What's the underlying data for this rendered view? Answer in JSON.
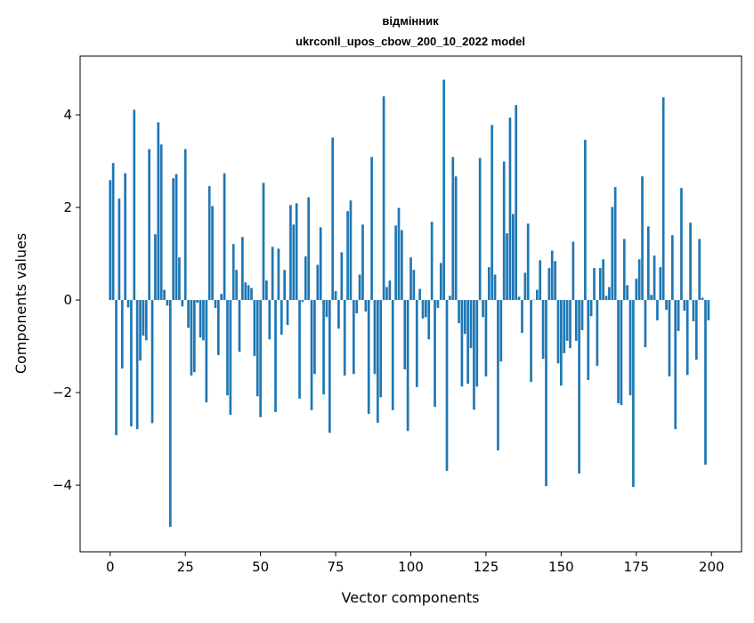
{
  "chart_data": {
    "type": "bar",
    "title_line1": "відмінник",
    "title_line2": "ukrconll_upos_cbow_200_10_2022 model",
    "xlabel": "Vector components",
    "ylabel": "Components values",
    "xlim": [
      -10,
      210
    ],
    "ylim": [
      -5.44,
      5.27
    ],
    "xticks": [
      0,
      25,
      50,
      75,
      100,
      125,
      150,
      175,
      200
    ],
    "xtick_labels": [
      "0",
      "25",
      "50",
      "75",
      "100",
      "125",
      "150",
      "175",
      "200"
    ],
    "yticks": [
      -4,
      -2,
      0,
      2,
      4
    ],
    "ytick_labels": [
      "−4",
      "−2",
      "0",
      "2",
      "4"
    ],
    "grid": false,
    "bar_color": "#1f77b4",
    "values": [
      2.59,
      2.96,
      -2.92,
      2.19,
      -1.48,
      2.74,
      -0.16,
      -2.73,
      4.11,
      -2.79,
      -1.31,
      -0.77,
      -0.87,
      3.26,
      -2.66,
      1.42,
      3.84,
      3.36,
      0.22,
      -0.12,
      -4.9,
      2.63,
      2.72,
      0.92,
      -0.14,
      3.26,
      -0.6,
      -1.63,
      -1.56,
      -0.06,
      -0.81,
      -0.87,
      -2.21,
      2.46,
      2.03,
      -0.17,
      -1.19,
      0.13,
      2.74,
      -2.06,
      -2.48,
      1.21,
      0.65,
      -1.12,
      1.36,
      0.38,
      0.32,
      0.26,
      -1.21,
      -2.08,
      -2.53,
      2.53,
      0.42,
      -0.85,
      1.15,
      -2.42,
      1.11,
      -0.75,
      0.65,
      -0.54,
      2.05,
      1.63,
      2.09,
      -2.13,
      -0.04,
      0.94,
      2.22,
      -2.38,
      -1.6,
      0.76,
      1.57,
      -2.04,
      -0.37,
      -2.87,
      3.51,
      0.19,
      -0.62,
      1.03,
      -1.63,
      1.92,
      2.15,
      -1.6,
      -0.29,
      0.55,
      1.63,
      -0.25,
      -2.46,
      3.09,
      -1.6,
      -2.65,
      -2.1,
      4.4,
      0.28,
      0.42,
      -2.38,
      1.61,
      1.99,
      1.51,
      -1.5,
      -2.83,
      0.92,
      0.65,
      -1.88,
      0.24,
      -0.4,
      -0.37,
      -0.85,
      1.69,
      -2.31,
      -0.17,
      0.8,
      4.76,
      -3.69,
      0.09,
      3.09,
      2.67,
      -0.5,
      -1.87,
      -0.73,
      -1.81,
      -1.04,
      -2.37,
      -1.87,
      3.07,
      -0.37,
      -1.65,
      0.71,
      3.78,
      0.55,
      -3.25,
      -1.33,
      2.99,
      1.44,
      3.94,
      1.86,
      4.21,
      0.07,
      -0.71,
      0.59,
      1.65,
      -1.77,
      0.01,
      0.22,
      0.86,
      -1.27,
      -4.02,
      0.69,
      1.07,
      0.84,
      -1.37,
      -1.85,
      -1.15,
      -0.88,
      -1.04,
      1.26,
      -0.88,
      -3.75,
      -0.65,
      3.46,
      -1.73,
      -0.35,
      0.69,
      -1.42,
      0.69,
      0.88,
      0.09,
      0.28,
      2.01,
      2.44,
      -2.23,
      -2.27,
      1.32,
      0.32,
      -2.06,
      -4.04,
      0.46,
      0.88,
      2.67,
      -1.02,
      1.59,
      0.11,
      0.96,
      -0.44,
      0.71,
      4.38,
      -0.21,
      -1.65,
      1.4,
      -2.79,
      -0.67,
      2.42,
      -0.23,
      -1.62,
      1.67,
      -0.46,
      -1.29,
      1.32,
      0.05,
      -3.56,
      -0.44
    ]
  }
}
